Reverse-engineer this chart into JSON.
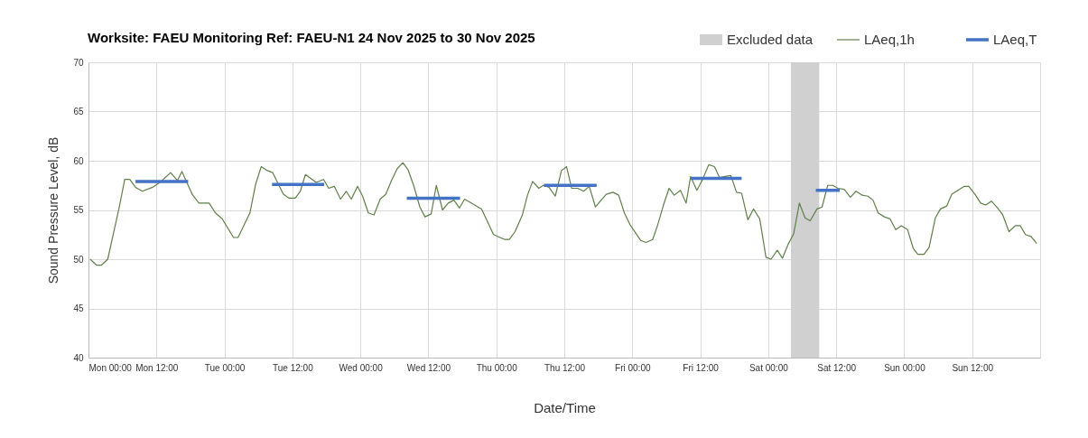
{
  "chart_data": {
    "type": "line",
    "title": "Worksite: FAEU   Monitoring Ref: FAEU-N1     24 Nov 2025 to 30 Nov 2025",
    "xlabel": "Date/Time",
    "ylabel": "Sound Pressure Level, dB",
    "xlim": [
      "2025-11-24T00:00",
      "2025-12-01T00:00"
    ],
    "ylim": [
      40,
      70
    ],
    "xticks": [
      {
        "value": "2025-11-24T00:00",
        "label": "Mon 00:00"
      },
      {
        "value": "2025-11-24T12:00",
        "label": "Mon 12:00"
      },
      {
        "value": "2025-11-25T00:00",
        "label": "Tue 00:00"
      },
      {
        "value": "2025-11-25T12:00",
        "label": "Tue 12:00"
      },
      {
        "value": "2025-11-26T00:00",
        "label": "Wed 00:00"
      },
      {
        "value": "2025-11-26T12:00",
        "label": "Wed 12:00"
      },
      {
        "value": "2025-11-27T00:00",
        "label": "Thu 00:00"
      },
      {
        "value": "2025-11-27T12:00",
        "label": "Thu 12:00"
      },
      {
        "value": "2025-11-28T00:00",
        "label": "Fri 00:00"
      },
      {
        "value": "2025-11-28T12:00",
        "label": "Fri 12:00"
      },
      {
        "value": "2025-11-29T00:00",
        "label": "Sat 00:00"
      },
      {
        "value": "2025-11-29T12:00",
        "label": "Sat 12:00"
      },
      {
        "value": "2025-11-30T00:00",
        "label": "Sun 00:00"
      },
      {
        "value": "2025-11-30T12:00",
        "label": "Sun 12:00"
      },
      {
        "value": "2025-12-01T00:00",
        "label": null
      }
    ],
    "yticks": [
      40,
      45,
      50,
      55,
      60,
      65,
      70
    ],
    "grid": true,
    "legend": "top right",
    "marker": "none",
    "line_style": "solid",
    "bands": [
      {
        "axis": "x",
        "from": "2025-11-29T04:00",
        "to": "2025-11-29T09:00",
        "label": "Excluded data",
        "color": "#d0d0d0"
      }
    ],
    "series": [
      {
        "name": "LAeq,1h",
        "color": "#5f7f4a",
        "x": [
          "2025-11-24T00:18",
          "2025-11-24T01:24",
          "2025-11-24T02:18",
          "2025-11-24T03:24",
          "2025-11-24T05:24",
          "2025-11-24T06:24",
          "2025-11-24T07:18",
          "2025-11-24T08:18",
          "2025-11-24T09:30",
          "2025-11-24T11:18",
          "2025-11-24T12:36",
          "2025-11-24T14:30",
          "2025-11-24T15:42",
          "2025-11-24T16:30",
          "2025-11-24T18:18",
          "2025-11-24T19:30",
          "2025-11-24T21:18",
          "2025-11-24T22:24",
          "2025-11-24T23:36",
          "2025-11-25T01:36",
          "2025-11-25T02:24",
          "2025-11-25T04:30",
          "2025-11-25T05:30",
          "2025-11-25T06:30",
          "2025-11-25T07:36",
          "2025-11-25T08:30",
          "2025-11-25T10:24",
          "2025-11-25T11:24",
          "2025-11-25T12:30",
          "2025-11-25T13:24",
          "2025-11-25T14:18",
          "2025-11-25T16:12",
          "2025-11-25T17:30",
          "2025-11-25T18:24",
          "2025-11-25T19:24",
          "2025-11-25T20:30",
          "2025-11-25T21:30",
          "2025-11-25T22:24",
          "2025-11-25T23:30",
          "2025-11-26T00:24",
          "2025-11-26T01:24",
          "2025-11-26T02:24",
          "2025-11-26T03:30",
          "2025-11-26T04:30",
          "2025-11-26T05:30",
          "2025-11-26T06:30",
          "2025-11-26T07:30",
          "2025-11-26T08:24",
          "2025-11-26T09:24",
          "2025-11-26T10:30",
          "2025-11-26T11:24",
          "2025-11-26T12:30",
          "2025-11-26T13:24",
          "2025-11-26T14:30",
          "2025-11-26T15:30",
          "2025-11-26T16:30",
          "2025-11-26T17:30",
          "2025-11-26T18:24",
          "2025-11-26T21:24",
          "2025-11-26T23:30",
          "2025-11-27T01:30",
          "2025-11-27T02:18",
          "2025-11-27T03:18",
          "2025-11-27T04:36",
          "2025-11-27T05:30",
          "2025-11-27T06:24",
          "2025-11-27T07:30",
          "2025-11-27T08:18",
          "2025-11-27T09:18",
          "2025-11-27T10:24",
          "2025-11-27T11:30",
          "2025-11-27T12:24",
          "2025-11-27T13:18",
          "2025-11-27T14:24",
          "2025-11-27T15:24",
          "2025-11-27T16:24",
          "2025-11-27T17:30",
          "2025-11-27T18:30",
          "2025-11-27T19:24",
          "2025-11-27T20:36",
          "2025-11-27T21:36",
          "2025-11-27T22:36",
          "2025-11-27T23:36",
          "2025-11-28T01:30",
          "2025-11-28T02:24",
          "2025-11-28T03:36",
          "2025-11-28T04:30",
          "2025-11-28T05:30",
          "2025-11-28T06:30",
          "2025-11-28T07:24",
          "2025-11-28T08:30",
          "2025-11-28T09:30",
          "2025-11-28T10:18",
          "2025-11-28T11:24",
          "2025-11-28T12:24",
          "2025-11-28T13:30",
          "2025-11-28T14:30",
          "2025-11-28T15:24",
          "2025-11-28T16:24",
          "2025-11-28T17:24",
          "2025-11-28T18:24",
          "2025-11-28T19:18",
          "2025-11-28T20:24",
          "2025-11-28T21:24",
          "2025-11-28T22:30",
          "2025-11-28T23:36",
          "2025-11-29T00:30",
          "2025-11-29T01:36",
          "2025-11-29T02:30",
          "2025-11-29T03:30",
          "2025-11-29T04:30",
          "2025-11-29T05:30",
          "2025-11-29T06:30",
          "2025-11-29T07:24",
          "2025-11-29T08:36",
          "2025-11-29T09:30",
          "2025-11-29T10:30",
          "2025-11-29T11:24",
          "2025-11-29T12:18",
          "2025-11-29T13:24",
          "2025-11-29T14:30",
          "2025-11-29T15:30",
          "2025-11-29T16:36",
          "2025-11-29T17:36",
          "2025-11-29T18:30",
          "2025-11-29T19:24",
          "2025-11-29T20:30",
          "2025-11-29T21:30",
          "2025-11-29T22:30",
          "2025-11-29T23:30",
          "2025-11-30T00:36",
          "2025-11-30T01:36",
          "2025-11-30T02:24",
          "2025-11-30T03:30",
          "2025-11-30T04:24",
          "2025-11-30T05:30",
          "2025-11-30T06:24",
          "2025-11-30T07:30",
          "2025-11-30T08:24",
          "2025-11-30T09:30",
          "2025-11-30T10:36",
          "2025-11-30T11:24",
          "2025-11-30T12:30",
          "2025-11-30T13:30",
          "2025-11-30T14:24",
          "2025-11-30T15:24",
          "2025-11-30T16:30",
          "2025-11-30T17:24",
          "2025-11-30T18:30",
          "2025-11-30T19:36",
          "2025-11-30T20:30",
          "2025-11-30T21:24",
          "2025-11-30T22:24",
          "2025-11-30T23:24"
        ],
        "values": [
          50.0,
          49.4,
          49.4,
          50.0,
          55.2,
          58.1,
          58.1,
          57.3,
          56.9,
          57.3,
          57.8,
          58.8,
          58.0,
          58.9,
          56.6,
          55.7,
          55.7,
          54.7,
          54.1,
          52.2,
          52.2,
          54.7,
          57.6,
          59.4,
          59.0,
          58.8,
          56.6,
          56.2,
          56.2,
          56.9,
          58.6,
          57.8,
          58.1,
          57.2,
          57.4,
          56.1,
          56.9,
          56.1,
          57.4,
          56.4,
          54.7,
          54.5,
          56.1,
          56.6,
          58.0,
          59.2,
          59.8,
          59.1,
          57.5,
          55.3,
          54.3,
          54.6,
          57.5,
          55.0,
          55.7,
          56.0,
          55.2,
          56.1,
          55.1,
          52.5,
          52.0,
          52.0,
          52.8,
          54.5,
          56.5,
          57.9,
          57.2,
          57.5,
          57.3,
          56.4,
          59.0,
          59.4,
          57.2,
          57.2,
          56.9,
          57.4,
          55.3,
          56.0,
          56.6,
          56.8,
          56.5,
          54.7,
          53.5,
          51.9,
          51.7,
          52.0,
          53.5,
          55.5,
          57.2,
          56.5,
          57.0,
          55.7,
          58.4,
          57.0,
          58.1,
          59.6,
          59.4,
          58.3,
          58.4,
          58.5,
          56.8,
          56.7,
          54.0,
          55.1,
          54.1,
          50.2,
          50.0,
          50.9,
          50.1,
          51.5,
          52.6,
          55.7,
          54.2,
          53.9,
          55.1,
          55.3,
          57.5,
          57.5,
          57.2,
          57.1,
          56.3,
          56.9,
          56.5,
          56.4,
          56.0,
          54.7,
          54.3,
          54.1,
          53.0,
          53.4,
          53.0,
          51.1,
          50.5,
          50.5,
          51.2,
          54.2,
          55.1,
          55.4,
          56.6,
          57.0,
          57.4,
          57.4,
          56.6,
          55.7,
          55.5,
          55.9,
          55.2,
          54.5,
          52.8,
          53.4,
          53.4,
          52.5,
          52.3,
          51.6
        ]
      },
      {
        "name": "LAeq,T",
        "color": "#4472c4",
        "x": [
          "2025-11-24T08:18",
          "2025-11-24T17:36",
          "2025-11-25T01:00",
          "2025-11-25T08:24",
          "2025-11-25T17:36",
          "2025-11-26T01:00",
          "2025-11-26T08:12",
          "2025-11-26T17:36",
          "2025-11-27T01:00",
          "2025-11-27T08:24",
          "2025-11-27T17:42",
          "2025-11-28T03:00",
          "2025-11-28T10:18",
          "2025-11-28T19:18",
          "2025-11-29T02:00",
          "2025-11-29T08:24",
          "2025-11-29T12:36"
        ],
        "values": [
          57.9,
          57.9,
          null,
          57.6,
          57.6,
          null,
          56.2,
          56.2,
          null,
          57.5,
          57.5,
          null,
          58.2,
          58.2,
          null,
          57.0,
          57.0
        ]
      }
    ]
  }
}
